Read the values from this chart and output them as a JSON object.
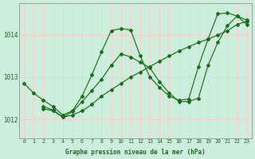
{
  "background_color": "#cceedd",
  "grid_color": "#ffcccc",
  "line_color": "#1a6b1a",
  "title": "Graphe pression niveau de la mer (hPa)",
  "ylabel_ticks": [
    1012,
    1013,
    1014
  ],
  "xlim": [
    -0.5,
    23.5
  ],
  "ylim": [
    1011.55,
    1014.75
  ],
  "line1": {
    "x": [
      0,
      1,
      2,
      3,
      4,
      5,
      6,
      7,
      8,
      9,
      10,
      11,
      12,
      13,
      14,
      15,
      16,
      17,
      18,
      19,
      20,
      21,
      22,
      23
    ],
    "y": [
      1012.85,
      1012.62,
      1012.45,
      1012.3,
      1012.1,
      1012.2,
      1012.55,
      1013.05,
      1013.6,
      1014.1,
      1014.15,
      1014.12,
      1013.5,
      1013.0,
      1012.75,
      1012.55,
      1012.45,
      1012.48,
      1013.25,
      1013.9,
      1014.5,
      1014.52,
      1014.45,
      1014.35
    ]
  },
  "line2": {
    "x": [
      2,
      3,
      4,
      5,
      6,
      7,
      8,
      9,
      10,
      11,
      12,
      13,
      14,
      15,
      16,
      17,
      18,
      19,
      20,
      21,
      22,
      23
    ],
    "y": [
      1012.25,
      1012.2,
      1012.05,
      1012.1,
      1012.2,
      1012.35,
      1012.55,
      1012.7,
      1012.85,
      1013.0,
      1013.12,
      1013.25,
      1013.38,
      1013.5,
      1013.62,
      1013.72,
      1013.82,
      1013.9,
      1014.0,
      1014.1,
      1014.25,
      1014.32
    ]
  },
  "line3": {
    "x": [
      2,
      3,
      4,
      5,
      6,
      7,
      8,
      9,
      10,
      11,
      12,
      13,
      14,
      15,
      16,
      17,
      18,
      19,
      20,
      21,
      22,
      23
    ],
    "y": [
      1012.3,
      1012.22,
      1012.05,
      1012.18,
      1012.42,
      1012.68,
      1012.95,
      1013.28,
      1013.55,
      1013.48,
      1013.35,
      1013.22,
      1012.88,
      1012.62,
      1012.42,
      1012.42,
      1012.5,
      1013.28,
      1013.82,
      1014.22,
      1014.45,
      1014.25
    ]
  }
}
